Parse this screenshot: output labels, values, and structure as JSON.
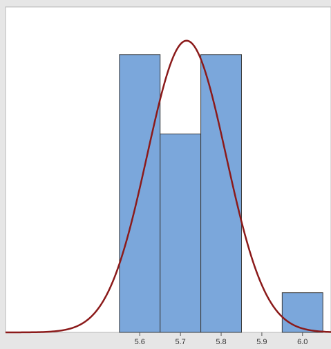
{
  "chart_data": {
    "type": "bar",
    "title": "",
    "xlabel": "",
    "ylabel": "",
    "bin_width": 0.1,
    "bins": [
      {
        "center": 5.6,
        "count": 7
      },
      {
        "center": 5.7,
        "count": 5
      },
      {
        "center": 5.8,
        "count": 7
      },
      {
        "center": 5.9,
        "count": 0
      },
      {
        "center": 6.0,
        "count": 1
      }
    ],
    "x_ticks": [
      {
        "value": 5.6,
        "label": "5.6"
      },
      {
        "value": 5.7,
        "label": "5.7"
      },
      {
        "value": 5.8,
        "label": "5.8"
      },
      {
        "value": 5.9,
        "label": "5.9"
      },
      {
        "value": 6.0,
        "label": "6.0"
      }
    ],
    "xlim": [
      5.27,
      6.07
    ],
    "ylim": [
      0,
      8.2
    ],
    "fit_curve": {
      "type": "normal",
      "mean": 5.715,
      "stdev": 0.097,
      "peak_count": 7.35
    },
    "colors": {
      "bar_fill": "#7ba7db",
      "bar_stroke": "#3a3a3a",
      "curve": "#8b1a1a",
      "plot_background": "#ffffff",
      "figure_background": "#e6e6e6"
    },
    "grid": false,
    "legend": "none"
  }
}
